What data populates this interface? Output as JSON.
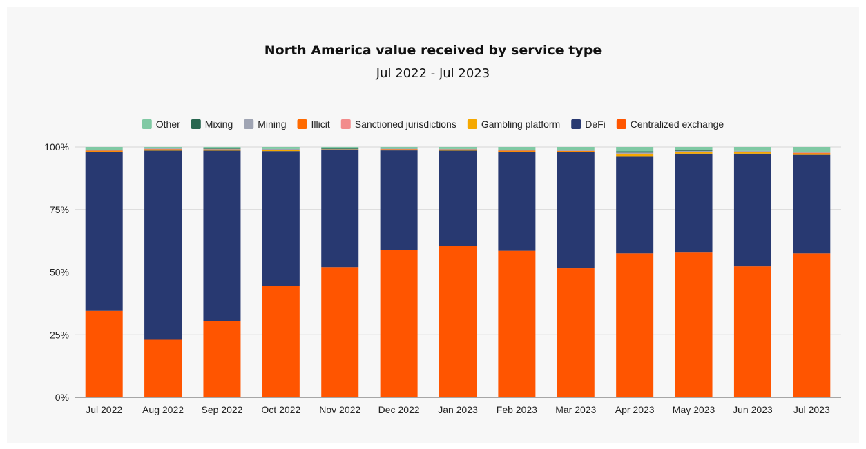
{
  "chart_data": {
    "type": "bar",
    "stacked": true,
    "title": "North America value received by service type",
    "subtitle": "Jul 2022 - Jul 2023",
    "xlabel": "",
    "ylabel": "",
    "ylim": [
      0,
      100
    ],
    "y_ticks": [
      "0%",
      "25%",
      "50%",
      "75%",
      "100%"
    ],
    "grid": true,
    "legend_position": "top",
    "categories": [
      "Jul 2022",
      "Aug 2022",
      "Sep 2022",
      "Oct 2022",
      "Nov 2022",
      "Dec 2022",
      "Jan 2023",
      "Feb 2023",
      "Mar 2023",
      "Apr 2023",
      "May 2023",
      "Jun 2023",
      "Jul 2023"
    ],
    "legend_order": [
      "Other",
      "Mixing",
      "Mining",
      "Illicit",
      "Sanctioned jurisdictions",
      "Gambling platform",
      "DeFi",
      "Centralized exchange"
    ],
    "series": [
      {
        "name": "Centralized exchange",
        "color": "#ff5500",
        "values": [
          34.5,
          23.0,
          30.5,
          44.5,
          52.0,
          58.8,
          60.5,
          58.5,
          51.5,
          57.5,
          57.8,
          52.3,
          57.5
        ]
      },
      {
        "name": "DeFi",
        "color": "#283971",
        "values": [
          63.4,
          75.5,
          68.0,
          53.8,
          46.7,
          39.8,
          38.0,
          39.3,
          46.4,
          38.8,
          39.5,
          45.0,
          39.3
        ]
      },
      {
        "name": "Gambling platform",
        "color": "#f5a800",
        "values": [
          0.3,
          0.4,
          0.2,
          0.4,
          0.2,
          0.3,
          0.4,
          0.4,
          0.3,
          0.7,
          0.5,
          0.6,
          0.5
        ]
      },
      {
        "name": "Sanctioned jurisdictions",
        "color": "#f28b8b",
        "values": [
          0.0,
          0.0,
          0.0,
          0.0,
          0.0,
          0.0,
          0.0,
          0.0,
          0.0,
          0.0,
          0.0,
          0.0,
          0.0
        ]
      },
      {
        "name": "Illicit",
        "color": "#ff6a00",
        "values": [
          0.3,
          0.2,
          0.3,
          0.2,
          0.1,
          0.2,
          0.1,
          0.3,
          0.2,
          0.3,
          0.2,
          0.2,
          0.3
        ]
      },
      {
        "name": "Mining",
        "color": "#9fa4b3",
        "values": [
          0.3,
          0.3,
          0.2,
          0.3,
          0.1,
          0.2,
          0.2,
          0.3,
          0.3,
          0.4,
          0.4,
          0.3,
          0.3
        ]
      },
      {
        "name": "Mixing",
        "color": "#27664f",
        "values": [
          0.0,
          0.0,
          0.2,
          0.0,
          0.3,
          0.0,
          0.0,
          0.0,
          0.0,
          0.5,
          0.3,
          0.0,
          0.0
        ]
      },
      {
        "name": "Other",
        "color": "#80c9a4",
        "values": [
          1.2,
          0.6,
          0.6,
          0.8,
          0.6,
          0.7,
          0.8,
          1.2,
          1.3,
          1.8,
          1.3,
          1.6,
          2.1
        ]
      }
    ]
  }
}
